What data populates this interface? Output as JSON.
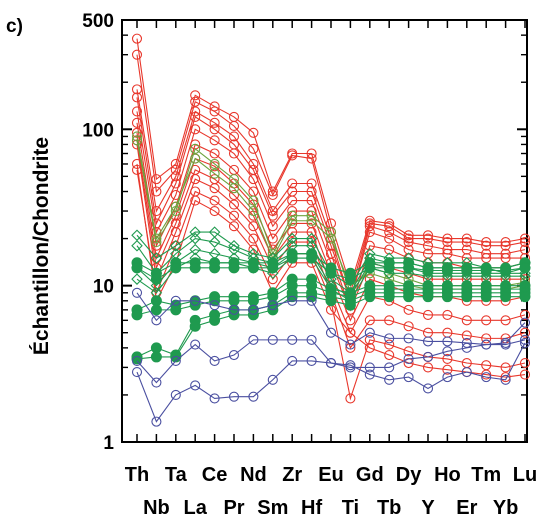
{
  "chart_data": {
    "type": "line",
    "panel_label": "c)",
    "ylabel": "Échantillon/Chondrite",
    "yscale": "log",
    "ylim": [
      1,
      500
    ],
    "y_ticks": [
      1,
      10,
      100,
      500
    ],
    "y_tick_labels": [
      "1",
      "10",
      "100",
      "500"
    ],
    "categories": [
      "Th",
      "Nb",
      "Ta",
      "La",
      "Ce",
      "Pr",
      "Nd",
      "Sm",
      "Zr",
      "Hf",
      "Eu",
      "Ti",
      "Gd",
      "Tb",
      "Dy",
      "Y",
      "Ho",
      "Er",
      "Tm",
      "Yb",
      "Lu"
    ],
    "x_labels_top": [
      "Th",
      "Ta",
      "Ce",
      "Nd",
      "Zr",
      "Eu",
      "Gd",
      "Dy",
      "Ho",
      "Tm",
      "Lu"
    ],
    "x_labels_bottom": [
      "Nb",
      "La",
      "Pr",
      "Sm",
      "Hf",
      "Ti",
      "Tb",
      "Y",
      "Er",
      "Yb"
    ],
    "groups": [
      {
        "color": "#e8372c",
        "marker": "open-circle",
        "series": [
          {
            "values": [
              380,
              48,
              60,
              165,
              140,
              120,
              95,
              40,
              70,
              70,
              25,
              10,
              26,
              25,
              21,
              21,
              20,
              20,
              19,
              19,
              20
            ]
          },
          {
            "values": [
              300,
              40,
              55,
              150,
              130,
              105,
              75,
              38,
              68,
              65,
              22,
              9,
              25,
              24,
              20,
              20,
              19,
              19,
              18,
              18,
              19
            ]
          },
          {
            "values": [
              180,
              30,
              50,
              130,
              110,
              90,
              60,
              30,
              45,
              45,
              20,
              8,
              24,
              22,
              19,
              18,
              17,
              17,
              16,
              16,
              17
            ]
          },
          {
            "values": [
              160,
              25,
              45,
              120,
              100,
              80,
              55,
              28,
              40,
              40,
              18,
              8,
              22,
              20,
              17,
              16,
              16,
              15,
              15,
              15,
              15
            ]
          },
          {
            "values": [
              130,
              22,
              38,
              100,
              85,
              70,
              48,
              24,
              35,
              35,
              16,
              7,
              18,
              17,
              15,
              14,
              14,
              13,
              13,
              13,
              14
            ]
          },
          {
            "values": [
              110,
              18,
              32,
              80,
              70,
              55,
              40,
              20,
              30,
              30,
              14,
              7,
              14,
              13,
              12,
              11,
              11,
              11,
              11,
              11,
              11
            ]
          },
          {
            "values": [
              95,
              15,
              28,
              65,
              58,
              45,
              33,
              17,
              25,
              25,
              12,
              6,
              11,
              10,
              9,
              8.5,
              8.5,
              8,
              8,
              8,
              8.5
            ]
          },
          {
            "values": [
              85,
              13,
              25,
              55,
              48,
              38,
              28,
              15,
              22,
              22,
              10,
              5,
              8.5,
              8,
              7,
              6.5,
              6.5,
              6,
              6,
              6,
              6.5
            ]
          },
          {
            "values": [
              80,
              11,
              22,
              48,
              42,
              33,
              24,
              13,
              19,
              19,
              9,
              4,
              6,
              6,
              5.5,
              5,
              5,
              4.8,
              4.6,
              4.6,
              5
            ]
          },
          {
            "values": [
              55,
              9,
              18,
              40,
              35,
              28,
              20,
              11,
              16,
              16,
              8,
              1.9,
              4.5,
              4.2,
              3.8,
              3.5,
              3.4,
              3.2,
              3.1,
              3,
              3.2
            ]
          },
          {
            "values": [
              60,
              8,
              14,
              35,
              30,
              24,
              17,
              9,
              14,
              14,
              7,
              5,
              4,
              3.6,
              3.2,
              3,
              2.9,
              2.8,
              2.7,
              2.6,
              2.7
            ]
          }
        ]
      },
      {
        "color": "#6da33e",
        "marker": "open-circle",
        "series": [
          {
            "values": [
              85,
              19,
              30,
              75,
              60,
              48,
              35,
              16,
              28,
              28,
              22,
              9,
              13,
              12,
              11,
              10,
              10,
              10,
              10,
              10,
              10.5
            ]
          },
          {
            "values": [
              90,
              20,
              32,
              65,
              52,
              42,
              30,
              15,
              26,
              26,
              20,
              10,
              12,
              11,
              10,
              9.5,
              9.5,
              9.5,
              9.5,
              9.5,
              10
            ]
          }
        ]
      },
      {
        "color": "#1f9a4f",
        "marker": "open-diamond",
        "series": [
          {
            "values": [
              21,
              15,
              18,
              22,
              22,
              18,
              16,
              15,
              20,
              20,
              12,
              10,
              16,
              15,
              15,
              14,
              14,
              14,
              13,
              13,
              14
            ]
          },
          {
            "values": [
              18,
              12,
              16,
              20,
              19,
              17,
              15,
              14,
              18,
              18,
              11,
              9,
              15,
              14,
              14,
              13,
              13,
              13,
              13,
              12,
              13
            ]
          },
          {
            "values": [
              13,
              10,
              14,
              17,
              16,
              15,
              14,
              13,
              16,
              16,
              10,
              8.5,
              14,
              13,
              13,
              12,
              12,
              12,
              12,
              12,
              12
            ]
          },
          {
            "values": [
              11,
              9,
              13,
              15,
              14,
              14,
              13,
              12,
              15,
              15,
              9.5,
              8,
              13,
              12,
              12,
              11.5,
              11.5,
              11.5,
              11.5,
              11.5,
              11.5
            ]
          }
        ]
      },
      {
        "color": "#1f9a4f",
        "marker": "filled-circle",
        "series": [
          {
            "values": [
              14,
              12,
              14,
              14,
              14,
              14,
              14,
              14,
              16,
              16,
              13,
              12,
              14,
              14,
              14,
              13,
              13,
              13,
              13,
              13,
              14
            ]
          },
          {
            "values": [
              13,
              11,
              13,
              13,
              13,
              13,
              13,
              13,
              15,
              15,
              12,
              11,
              13,
              13,
              13,
              12.5,
              12.5,
              12.5,
              12.5,
              12.5,
              13
            ]
          },
          {
            "values": [
              7,
              8,
              7.5,
              8,
              8.5,
              8.5,
              8.5,
              9,
              11,
              11,
              9.5,
              9,
              10,
              10,
              10,
              10,
              10,
              10,
              10,
              10,
              10
            ]
          },
          {
            "values": [
              6.5,
              7,
              7,
              7.5,
              8,
              8,
              8,
              8.5,
              10,
              10,
              9,
              8.5,
              9.5,
              9.5,
              9.5,
              9.5,
              9.5,
              9.5,
              9.5,
              9.5,
              9.5
            ]
          },
          {
            "values": [
              3.5,
              4,
              3.6,
              6,
              6.5,
              7,
              7,
              7.5,
              9,
              9,
              8.5,
              8,
              9,
              9,
              9,
              9,
              9,
              9,
              9,
              9,
              9
            ]
          },
          {
            "values": [
              3.4,
              3.5,
              3.5,
              5.5,
              6,
              6.5,
              6.5,
              7,
              8.5,
              8.5,
              8,
              7.5,
              8.5,
              8.5,
              8.5,
              8.5,
              8.5,
              8.5,
              8.5,
              8.5,
              8.5
            ]
          }
        ]
      },
      {
        "color": "#4a4fa0",
        "marker": "open-circle",
        "series": [
          {
            "values": [
              3.3,
              2.4,
              3.3,
              4.2,
              3.3,
              3.6,
              4.5,
              4.5,
              4.5,
              4.5,
              3.2,
              3.0,
              3.0,
              3.0,
              3.4,
              3.5,
              3.8,
              4.0,
              4.2,
              4.3,
              5.8
            ]
          },
          {
            "values": [
              2.8,
              1.35,
              2.0,
              2.3,
              1.9,
              1.95,
              1.95,
              2.5,
              3.3,
              3.3,
              3.2,
              3.1,
              2.7,
              2.5,
              2.6,
              2.2,
              2.6,
              2.8,
              2.6,
              2.5,
              4.3
            ]
          },
          {
            "values": [
              9,
              6,
              8,
              8,
              7.5,
              7,
              7,
              7.5,
              8,
              8,
              5,
              4.2,
              5,
              4.6,
              4.6,
              4.4,
              4.4,
              4.3,
              4.2,
              4.2,
              4.5
            ]
          }
        ]
      }
    ]
  }
}
